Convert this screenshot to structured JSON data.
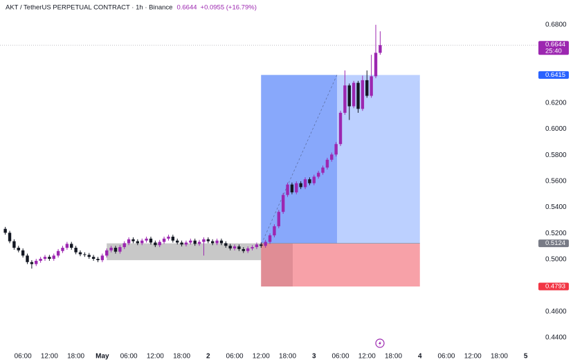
{
  "chart_data": {
    "type": "candlestick",
    "title": "AKT / TetherUS PERPETUAL CONTRACT · 1h · Binance",
    "last_price": 0.6644,
    "change": "+0.0955 (+16.79%)",
    "countdown": "25:40",
    "up_color": "#9c27b0",
    "down_color": "#131722",
    "xlim": [
      -5.2,
      116.4
    ],
    "ylim": [
      0.431,
      0.699
    ],
    "xticks": [
      {
        "value": 0,
        "label": "06:00"
      },
      {
        "value": 6,
        "label": "12:00"
      },
      {
        "value": 12,
        "label": "18:00"
      },
      {
        "value": 18,
        "label": "May"
      },
      {
        "value": 24,
        "label": "06:00"
      },
      {
        "value": 30,
        "label": "12:00"
      },
      {
        "value": 36,
        "label": "18:00"
      },
      {
        "value": 42,
        "label": "2"
      },
      {
        "value": 48,
        "label": "06:00"
      },
      {
        "value": 54,
        "label": "12:00"
      },
      {
        "value": 60,
        "label": "18:00"
      },
      {
        "value": 66,
        "label": "3"
      },
      {
        "value": 72,
        "label": "06:00"
      },
      {
        "value": 78,
        "label": "12:00"
      },
      {
        "value": 84,
        "label": "18:00"
      },
      {
        "value": 90,
        "label": "4"
      },
      {
        "value": 96,
        "label": "06:00"
      },
      {
        "value": 102,
        "label": "12:00"
      },
      {
        "value": 108,
        "label": "18:00"
      },
      {
        "value": 114,
        "label": "5"
      }
    ],
    "yticks": [
      {
        "value": 0.68,
        "label": "0.6800"
      },
      {
        "value": 0.62,
        "label": "0.6200"
      },
      {
        "value": 0.6,
        "label": "0.6000"
      },
      {
        "value": 0.58,
        "label": "0.5800"
      },
      {
        "value": 0.56,
        "label": "0.5600"
      },
      {
        "value": 0.54,
        "label": "0.5400"
      },
      {
        "value": 0.52,
        "label": "0.5200"
      },
      {
        "value": 0.5,
        "label": "0.5000"
      },
      {
        "value": 0.46,
        "label": "0.4600"
      },
      {
        "value": 0.44,
        "label": "0.4400"
      }
    ],
    "x": [
      -4,
      -3,
      -2,
      -1,
      0,
      1,
      2,
      3,
      4,
      5,
      6,
      7,
      8,
      9,
      10,
      11,
      12,
      13,
      14,
      15,
      16,
      17,
      18,
      19,
      20,
      21,
      22,
      23,
      24,
      25,
      26,
      27,
      28,
      29,
      30,
      31,
      32,
      33,
      34,
      35,
      36,
      37,
      38,
      39,
      40,
      41,
      42,
      43,
      44,
      45,
      46,
      47,
      48,
      49,
      50,
      51,
      52,
      53,
      54,
      55,
      56,
      57,
      58,
      59,
      60,
      61,
      62,
      63,
      64,
      65,
      66,
      67,
      68,
      69,
      70,
      71,
      72,
      73,
      74,
      75,
      76,
      77,
      78,
      79,
      80,
      81
    ],
    "open": [
      0.5235,
      0.5205,
      0.514,
      0.509,
      0.507,
      0.503,
      0.498,
      0.4965,
      0.499,
      0.5005,
      0.502,
      0.5005,
      0.503,
      0.5065,
      0.509,
      0.512,
      0.509,
      0.5055,
      0.504,
      0.5035,
      0.502,
      0.5005,
      0.4995,
      0.503,
      0.507,
      0.509,
      0.506,
      0.5095,
      0.5125,
      0.5155,
      0.514,
      0.5125,
      0.5145,
      0.516,
      0.513,
      0.511,
      0.5135,
      0.516,
      0.5175,
      0.5145,
      0.513,
      0.5115,
      0.513,
      0.5145,
      0.512,
      0.5135,
      0.5155,
      0.514,
      0.5125,
      0.5145,
      0.5125,
      0.5105,
      0.5085,
      0.51,
      0.508,
      0.5065,
      0.5085,
      0.5095,
      0.5115,
      0.5105,
      0.5135,
      0.5185,
      0.5255,
      0.5365,
      0.5495,
      0.5575,
      0.5515,
      0.5585,
      0.5555,
      0.5615,
      0.5585,
      0.5635,
      0.5665,
      0.5705,
      0.5765,
      0.5805,
      0.5885,
      0.6125,
      0.6335,
      0.6175,
      0.6355,
      0.6155,
      0.6375,
      0.6255,
      0.6405,
      0.6585
    ],
    "high": [
      0.525,
      0.522,
      0.5155,
      0.5105,
      0.5085,
      0.5045,
      0.4995,
      0.5005,
      0.502,
      0.5035,
      0.5035,
      0.5045,
      0.508,
      0.5105,
      0.5135,
      0.5135,
      0.5105,
      0.507,
      0.5055,
      0.505,
      0.5035,
      0.502,
      0.5045,
      0.5085,
      0.5105,
      0.5105,
      0.511,
      0.514,
      0.517,
      0.517,
      0.5155,
      0.516,
      0.5175,
      0.5175,
      0.5145,
      0.515,
      0.5175,
      0.519,
      0.519,
      0.516,
      0.5145,
      0.5145,
      0.516,
      0.516,
      0.515,
      0.517,
      0.517,
      0.5155,
      0.516,
      0.516,
      0.514,
      0.512,
      0.5115,
      0.5115,
      0.5095,
      0.51,
      0.511,
      0.513,
      0.513,
      0.515,
      0.52,
      0.527,
      0.538,
      0.551,
      0.559,
      0.559,
      0.56,
      0.56,
      0.563,
      0.563,
      0.565,
      0.568,
      0.572,
      0.578,
      0.582,
      0.59,
      0.614,
      0.645,
      0.635,
      0.637,
      0.637,
      0.641,
      0.645,
      0.657,
      0.68,
      0.675
    ],
    "low": [
      0.519,
      0.5125,
      0.5075,
      0.5055,
      0.5015,
      0.4965,
      0.493,
      0.495,
      0.4975,
      0.499,
      0.499,
      0.499,
      0.5015,
      0.505,
      0.5075,
      0.5075,
      0.504,
      0.5025,
      0.502,
      0.5005,
      0.499,
      0.498,
      0.498,
      0.5015,
      0.5055,
      0.5045,
      0.5045,
      0.508,
      0.511,
      0.5125,
      0.511,
      0.511,
      0.513,
      0.5115,
      0.5095,
      0.5095,
      0.512,
      0.5145,
      0.513,
      0.5115,
      0.51,
      0.51,
      0.5115,
      0.5105,
      0.5105,
      0.503,
      0.5125,
      0.511,
      0.511,
      0.511,
      0.509,
      0.507,
      0.507,
      0.5065,
      0.505,
      0.505,
      0.507,
      0.508,
      0.509,
      0.509,
      0.512,
      0.517,
      0.524,
      0.535,
      0.548,
      0.55,
      0.55,
      0.554,
      0.554,
      0.557,
      0.557,
      0.562,
      0.565,
      0.569,
      0.575,
      0.579,
      0.587,
      0.611,
      0.607,
      0.616,
      0.6125,
      0.614,
      0.624,
      0.624,
      0.639,
      0.657
    ],
    "close": [
      0.5205,
      0.514,
      0.509,
      0.507,
      0.503,
      0.498,
      0.4965,
      0.499,
      0.5005,
      0.502,
      0.5005,
      0.503,
      0.5065,
      0.509,
      0.512,
      0.509,
      0.5055,
      0.504,
      0.5035,
      0.502,
      0.5005,
      0.4995,
      0.503,
      0.507,
      0.509,
      0.506,
      0.5095,
      0.5125,
      0.5155,
      0.514,
      0.5125,
      0.5145,
      0.516,
      0.513,
      0.511,
      0.5135,
      0.516,
      0.5175,
      0.5145,
      0.513,
      0.5115,
      0.513,
      0.5145,
      0.512,
      0.5135,
      0.5155,
      0.514,
      0.5125,
      0.5145,
      0.5125,
      0.5105,
      0.5085,
      0.51,
      0.508,
      0.5065,
      0.5085,
      0.5095,
      0.5115,
      0.5105,
      0.5135,
      0.5185,
      0.5255,
      0.5365,
      0.5495,
      0.5575,
      0.5515,
      0.5585,
      0.5555,
      0.5615,
      0.5585,
      0.5635,
      0.5665,
      0.5705,
      0.5765,
      0.5805,
      0.5885,
      0.6125,
      0.6335,
      0.6175,
      0.6355,
      0.6155,
      0.6375,
      0.6255,
      0.6405,
      0.6585,
      0.6644
    ],
    "zone": {
      "x": [
        19,
        61
      ],
      "y": [
        0.4995,
        0.5124
      ]
    },
    "position": {
      "start": 54,
      "end": 90,
      "target": 0.6415,
      "entry": 0.5124,
      "stop": 0.4793
    }
  }
}
